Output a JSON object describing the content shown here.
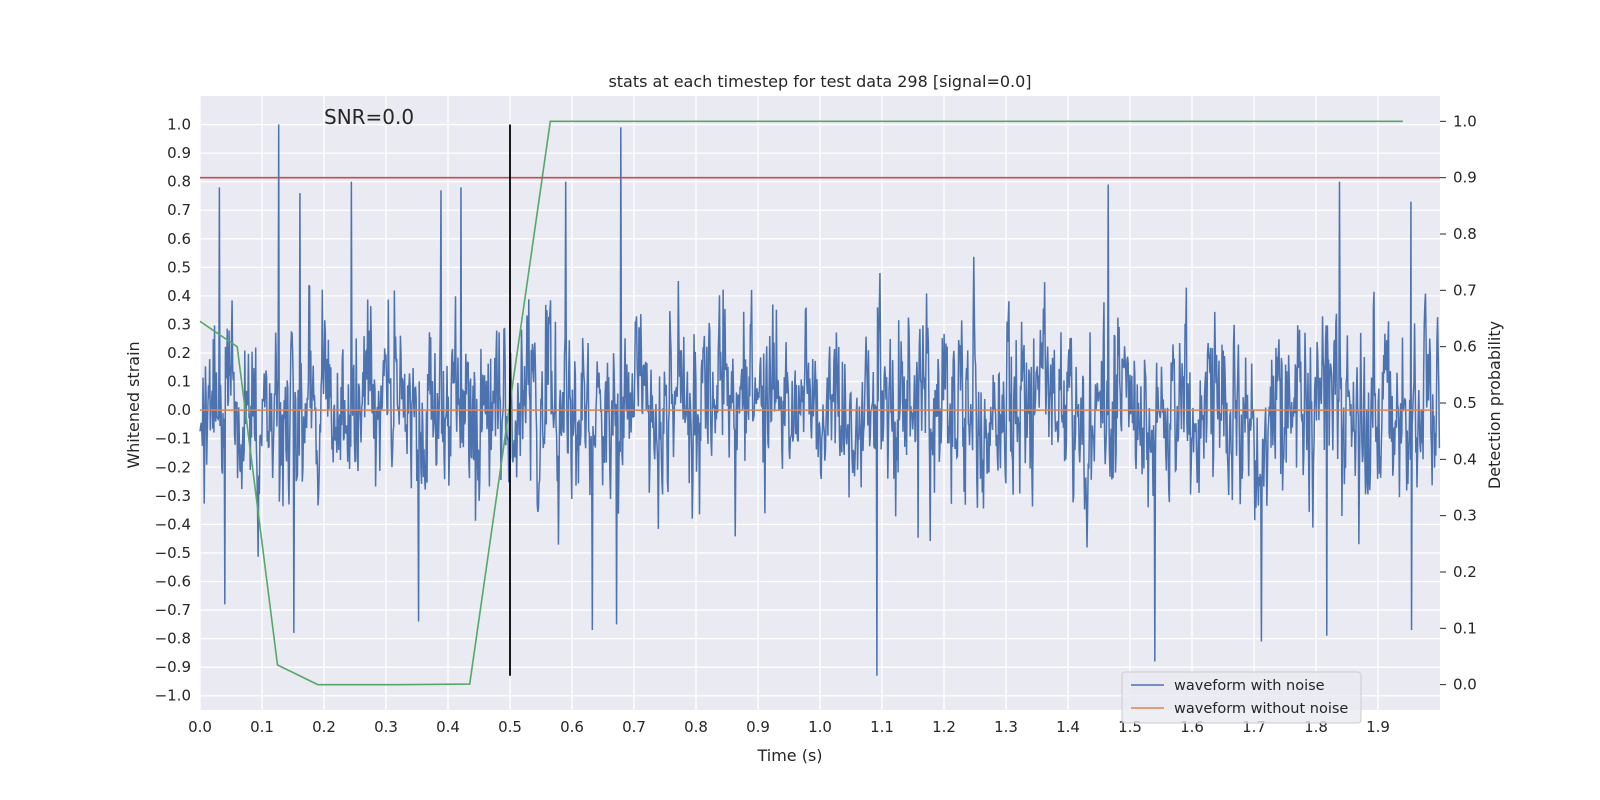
{
  "chart_data": {
    "type": "line",
    "title": "stats at each timestep for test data 298 [signal=0.0]",
    "xlabel": "Time (s)",
    "ylabel": "Whitened strain",
    "y2label": "Detection probability",
    "annotation": "SNR=0.0",
    "xlim": [
      0.0,
      2.0
    ],
    "ylim": [
      -1.05,
      1.1
    ],
    "y2lim": [
      -0.045,
      1.045
    ],
    "x_ticks": [
      "0.0",
      "0.1",
      "0.2",
      "0.3",
      "0.4",
      "0.5",
      "0.6",
      "0.7",
      "0.8",
      "0.9",
      "1.0",
      "1.1",
      "1.2",
      "1.3",
      "1.4",
      "1.5",
      "1.6",
      "1.7",
      "1.8",
      "1.9"
    ],
    "y_ticks": [
      "1.0",
      "0.9",
      "0.8",
      "0.7",
      "0.6",
      "0.5",
      "0.4",
      "0.3",
      "0.2",
      "0.1",
      "0.0",
      "−0.1",
      "−0.2",
      "−0.3",
      "−0.4",
      "−0.5",
      "−0.6",
      "−0.7",
      "−0.8",
      "−0.9",
      "−1.0"
    ],
    "y2_ticks": [
      "1.0",
      "0.9",
      "0.8",
      "0.7",
      "0.6",
      "0.5",
      "0.4",
      "0.3",
      "0.2",
      "0.1",
      "0.0"
    ],
    "grid": true,
    "legend_position": "lower-right",
    "background_color": "#eaeaf2",
    "series": [
      {
        "name": "waveform with noise",
        "axis": "left",
        "color": "#4c72b0",
        "sample_count": 2048,
        "peak_max": 1.0,
        "peak_min": -0.93,
        "peaks": [
          {
            "x": 0.127,
            "y": 1.0
          },
          {
            "x": 0.679,
            "y": 0.99
          },
          {
            "x": 0.244,
            "y": 0.8
          },
          {
            "x": 0.59,
            "y": 0.8
          },
          {
            "x": 1.838,
            "y": 0.8
          },
          {
            "x": 1.465,
            "y": 0.79
          },
          {
            "x": 0.031,
            "y": 0.78
          },
          {
            "x": 0.389,
            "y": 0.77
          },
          {
            "x": 0.161,
            "y": 0.76
          },
          {
            "x": 0.421,
            "y": 0.78
          },
          {
            "x": 1.953,
            "y": 0.73
          },
          {
            "x": 1.092,
            "y": -0.93
          },
          {
            "x": 1.54,
            "y": -0.88
          },
          {
            "x": 1.712,
            "y": -0.81
          },
          {
            "x": 0.151,
            "y": -0.78
          },
          {
            "x": 1.817,
            "y": -0.79
          },
          {
            "x": 0.672,
            "y": -0.75
          },
          {
            "x": 0.633,
            "y": -0.77
          },
          {
            "x": 1.954,
            "y": -0.77
          },
          {
            "x": 0.353,
            "y": -0.74
          },
          {
            "x": 0.04,
            "y": -0.68
          }
        ]
      },
      {
        "name": "waveform without noise",
        "axis": "left",
        "color": "#dd8452",
        "x": [
          0.0,
          1.99
        ],
        "y": [
          0.0,
          0.0
        ]
      },
      {
        "name": "",
        "axis": "right",
        "color": "#55a868",
        "x": [
          0.0,
          0.06,
          0.125,
          0.19,
          0.315,
          0.435,
          0.565,
          1.94
        ],
        "y": [
          0.645,
          0.6,
          0.035,
          0.0,
          0.0,
          0.001,
          1.0,
          1.0
        ]
      }
    ],
    "reference_lines": [
      {
        "orientation": "horizontal",
        "axis": "right",
        "value": 0.9,
        "color": "#c44e52"
      },
      {
        "orientation": "vertical",
        "value": 0.5,
        "y_from": -0.93,
        "y_to": 1.0,
        "color": "#000000"
      }
    ]
  }
}
